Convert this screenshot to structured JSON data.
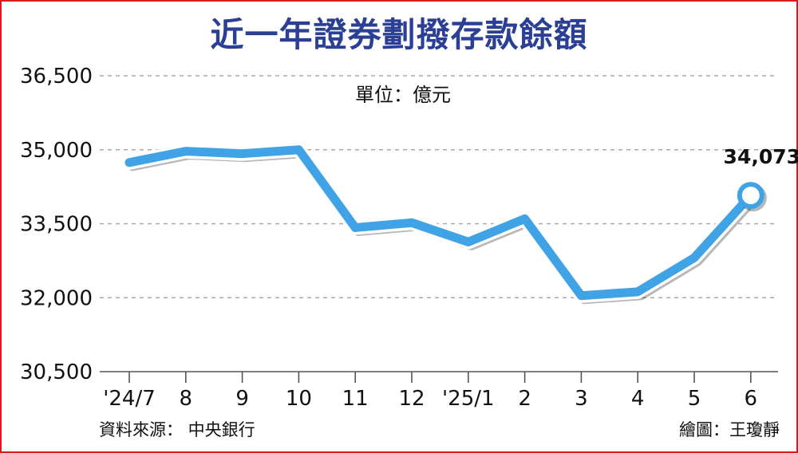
{
  "title": "近一年證券劃撥存款餘額",
  "unit": "單位：億元",
  "source": "資料來源： 中央銀行",
  "credit": "繪圖：王瓊靜",
  "colors": {
    "border": "#d71920",
    "title": "#2b3f95",
    "line": "#3fa3e5",
    "grid": "#a9a9a9",
    "axis": "#555555",
    "text": "#111111"
  },
  "chart_data": {
    "type": "line",
    "categories": [
      "'24/7",
      "8",
      "9",
      "10",
      "11",
      "12",
      "'25/1",
      "2",
      "3",
      "4",
      "5",
      "6"
    ],
    "values": [
      34740,
      34970,
      34920,
      35000,
      33420,
      33520,
      33130,
      33600,
      32040,
      32120,
      32810,
      34073
    ],
    "ylim": [
      30500,
      36500
    ],
    "yticks": [
      30500,
      32000,
      33500,
      35000,
      36500
    ],
    "ytick_labels": [
      "30,500",
      "32,000",
      "33,500",
      "35,000",
      "36,500"
    ],
    "grid": true,
    "annotation": {
      "index": 11,
      "text": "34,073"
    }
  }
}
